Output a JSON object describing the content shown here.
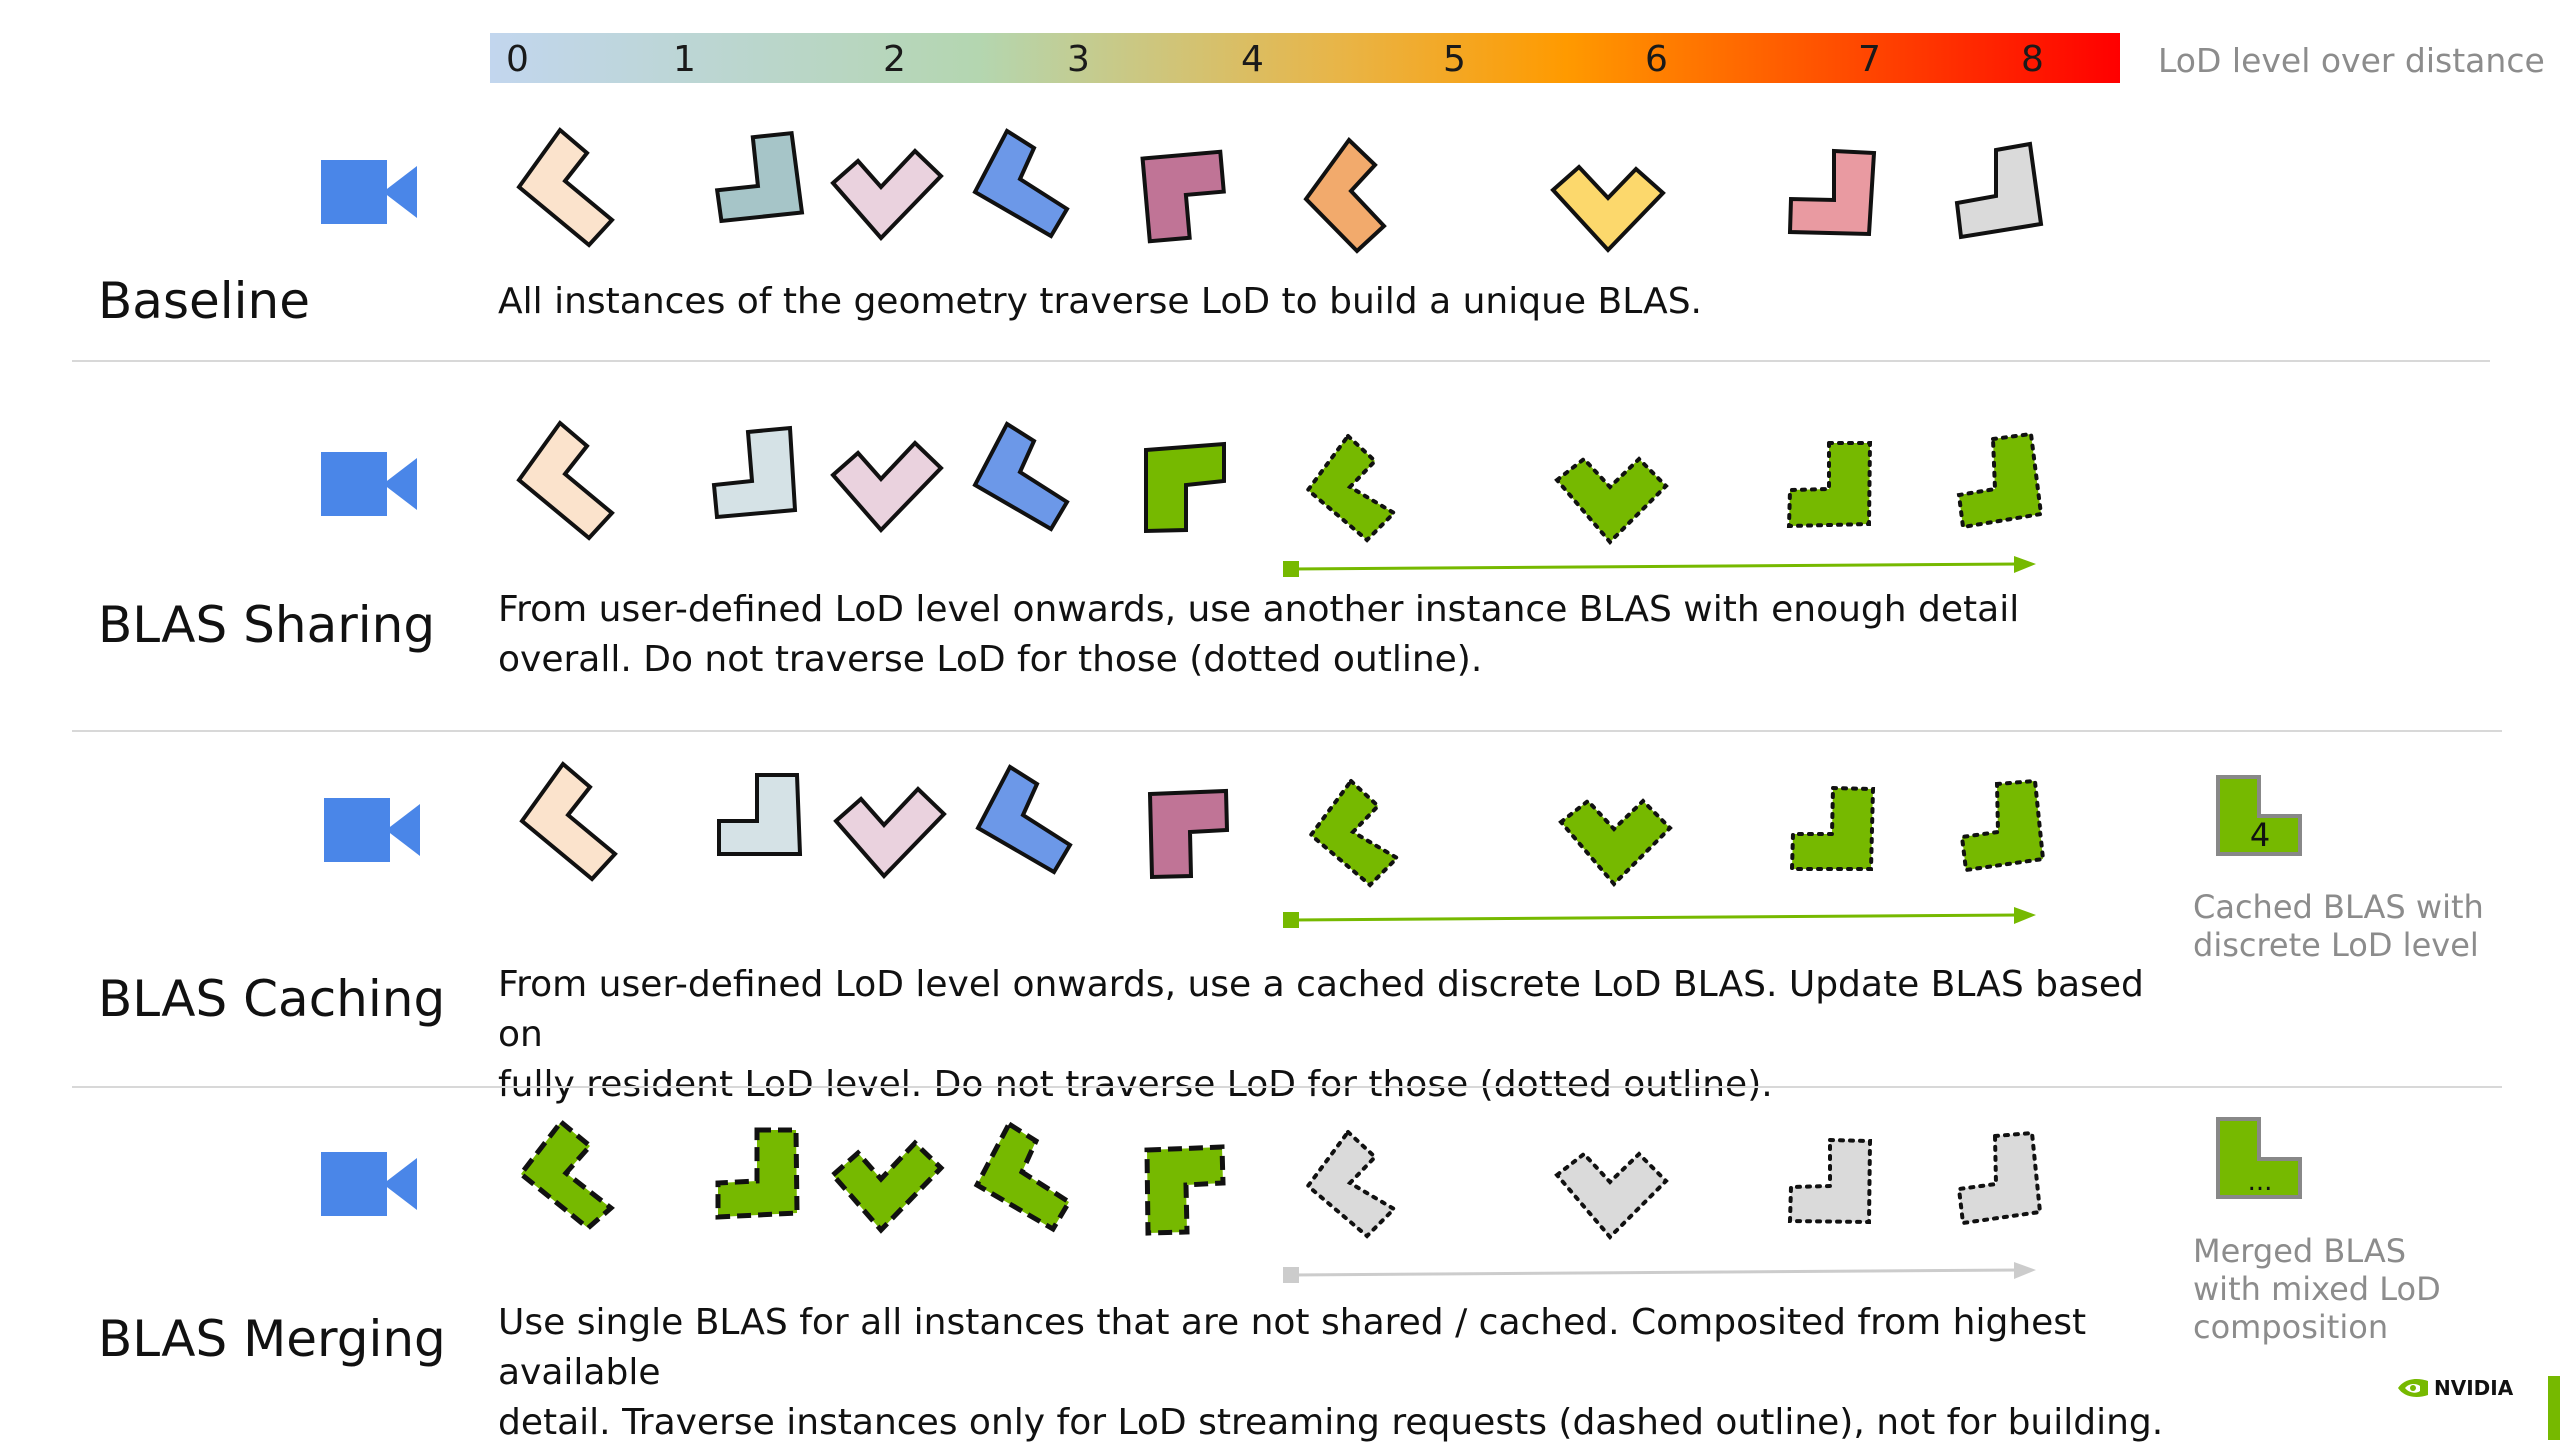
{
  "legend": {
    "ticks": [
      "0",
      "1",
      "2",
      "3",
      "4",
      "5",
      "6",
      "7",
      "8"
    ],
    "title": "LoD level over distance"
  },
  "rows": [
    {
      "title": "Baseline",
      "description": "All instances of the geometry traverse LoD to build a unique BLAS.",
      "shape_fills": [
        "#fbe3cc",
        "#a6c5c8",
        "#ead2de",
        "#6c98e8",
        "#c07496",
        "#f2aa6c",
        "#fcd86c",
        "#e99aa1",
        "#dadada"
      ],
      "outline": "solid"
    },
    {
      "title": "BLAS Sharing",
      "description_lines": [
        "From user-defined LoD level onwards, use another instance BLAS with enough detail",
        "overall. Do not traverse LoD for those (dotted outline)."
      ],
      "shape_fills": [
        "#fbe3cc",
        "#d5e2e6",
        "#ead2de",
        "#6c98e8",
        "#76b900",
        "#76b900",
        "#76b900",
        "#76b900",
        "#76b900"
      ],
      "outline": "solid then dotted"
    },
    {
      "title": "BLAS Caching",
      "description_lines": [
        "From user-defined LoD level onwards, use a cached discrete LoD BLAS. Update BLAS based on",
        "fully resident LoD level. Do not traverse LoD for those (dotted outline)."
      ],
      "shape_fills": [
        "#fbe3cc",
        "#d5e2e6",
        "#ead2de",
        "#6c98e8",
        "#c07496",
        "#76b900",
        "#76b900",
        "#76b900",
        "#76b900"
      ],
      "outline": "solid then dotted",
      "side_icon_label": "4",
      "side_caption_lines": [
        "Cached BLAS with",
        "discrete LoD level"
      ]
    },
    {
      "title": "BLAS Merging",
      "description_lines": [
        "Use single BLAS for all instances that are not shared / cached. Composited from highest available",
        "detail. Traverse instances only for LoD streaming requests (dashed outline), not for building."
      ],
      "shape_fills": [
        "#76b900",
        "#76b900",
        "#76b900",
        "#76b900",
        "#76b900",
        "#dadada",
        "#dadada",
        "#dadada",
        "#dadada"
      ],
      "outline": "dashed then dotted",
      "side_icon_label": "...",
      "side_caption_lines": [
        "Merged BLAS",
        "with mixed LoD",
        "composition"
      ]
    }
  ],
  "colors": {
    "camera": "#4a86e8",
    "accent_green": "#76b900",
    "arrow_grey": "#cccccc"
  },
  "brand": {
    "logo": "NVIDIA"
  }
}
